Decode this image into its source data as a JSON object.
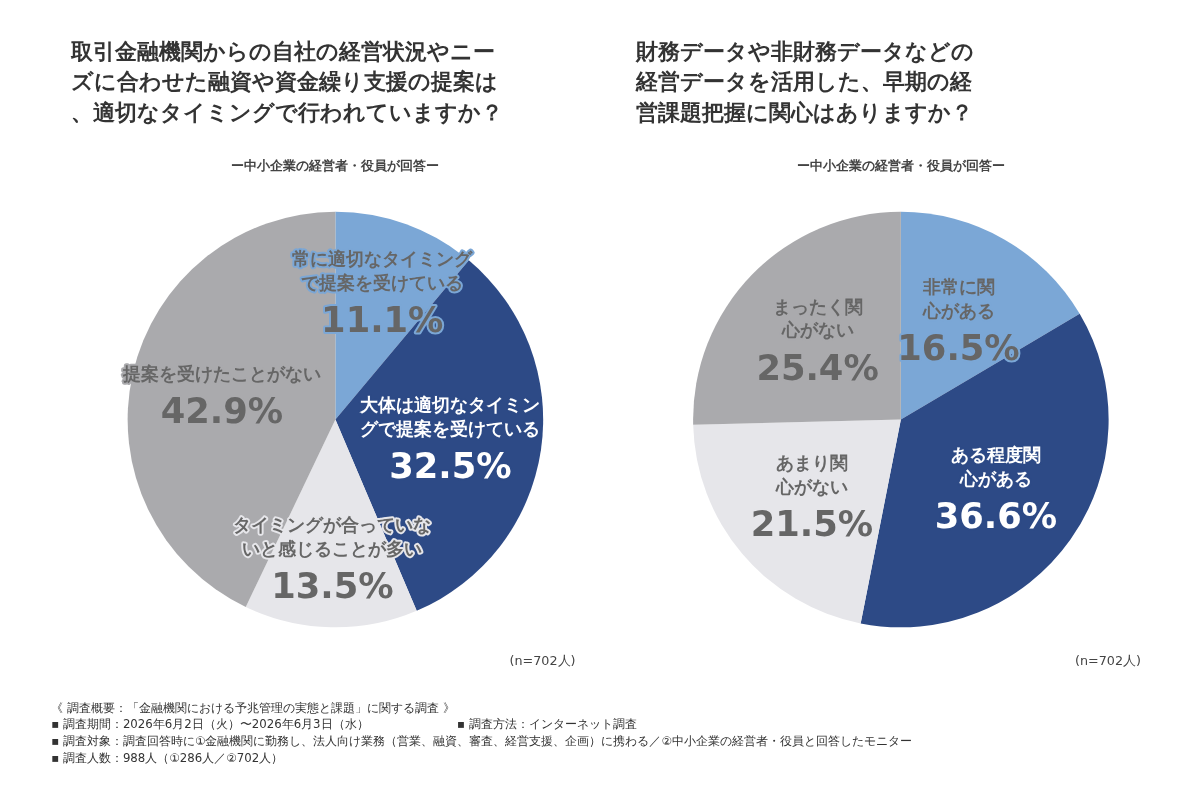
{
  "chart_data": [
    {
      "type": "pie",
      "title": "取引金融機関からの自社の経営状況やニーズに合わせた融資や資金繰り支援の提案は、適切なタイミングで行われていますか？",
      "subtitle": "ー中小企業の経営者・役員が回答ー",
      "categories": [
        "常に適切なタイミングで提案を受けている",
        "大体は適切なタイミングで提案を受けている",
        "タイミングが合っていないと感じることが多い",
        "提案を受けたことがない"
      ],
      "values": [
        11.1,
        32.5,
        13.5,
        42.9
      ],
      "value_labels": [
        "11.1%",
        "32.5%",
        "13.5%",
        "42.9%"
      ],
      "colors": [
        "#7ba7d6",
        "#2d4a86",
        "#e6e6ea",
        "#aaaaad"
      ],
      "legend": false,
      "annotations": [
        "(n=702人)",
        "《 調査概要：「金融機関における予兆管理の実態と課題」に関する調査 》",
        "▪ 調査期間：2026年6月2日（火）〜2026年6月3日（水）",
        "▪ 調査方法：インターネット調査",
        "▪ 調査対象：調査回答時に①金融機関に勤務し、法人向け業務（営業、融資、審査、経営支援、企画）に携わる／②中小企業の経営者・役員と回答したモニター",
        "▪ 調査人数：988人（①286人／②702人）"
      ]
    },
    {
      "type": "pie",
      "title": "財務データや非財務データなどの経営データを活用した、早期の経営課題把握に関心はありますか？",
      "subtitle": "ー中小企業の経営者・役員が回答ー",
      "categories": [
        "非常に関心がある",
        "ある程度関心がある",
        "あまり関心がない",
        "まったく関心がない"
      ],
      "values": [
        16.5,
        36.6,
        21.5,
        25.4
      ],
      "value_labels": [
        "16.5%",
        "36.6%",
        "21.5%",
        "25.4%"
      ],
      "colors": [
        "#7ba7d6",
        "#2d4a86",
        "#e6e6ea",
        "#aaaaad"
      ],
      "legend": false,
      "annotations": [
        "(n=702人)"
      ]
    }
  ]
}
